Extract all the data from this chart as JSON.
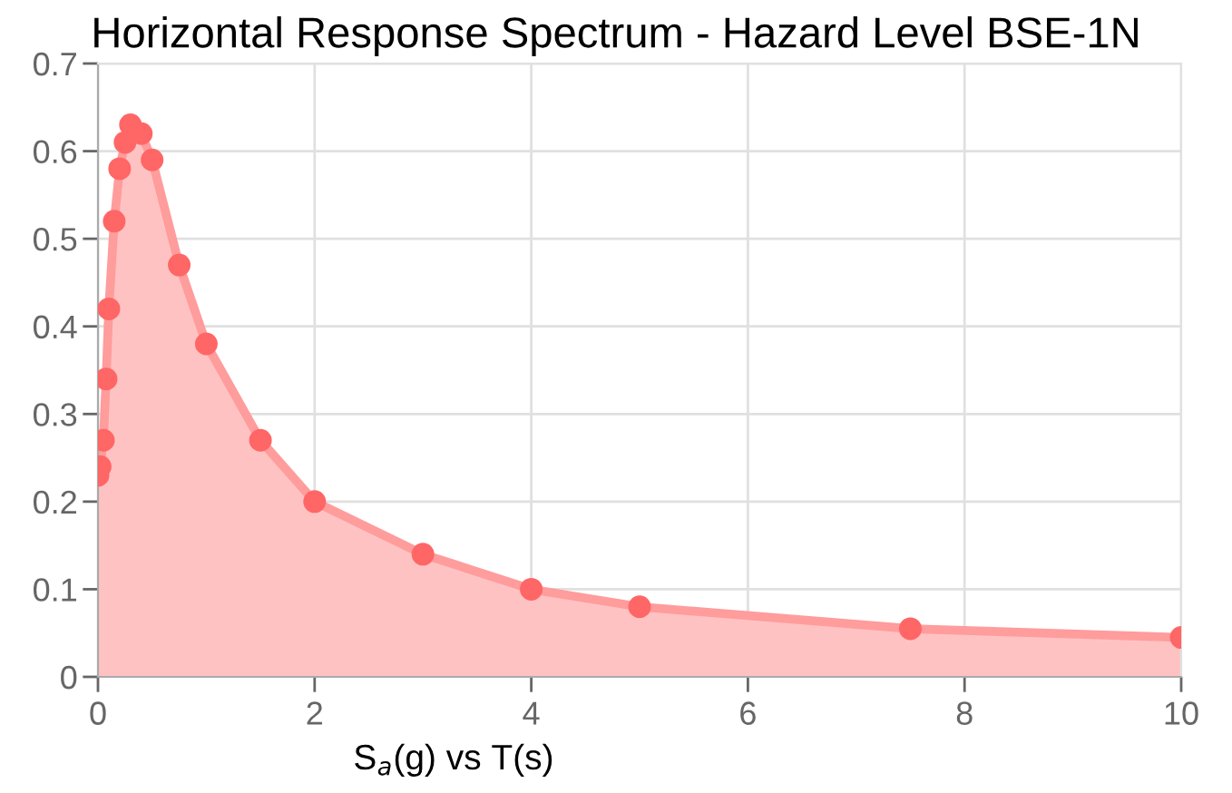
{
  "chart_data": {
    "type": "area",
    "title": "Horizontal Response Spectrum - Hazard Level BSE-1N",
    "xlabel": "S$_{a}$(g) vs T(s)",
    "x": [
      0,
      0.02,
      0.05,
      0.075,
      0.1,
      0.15,
      0.2,
      0.25,
      0.3,
      0.4,
      0.5,
      0.75,
      1.0,
      1.5,
      2,
      3,
      4,
      5,
      7.5,
      10
    ],
    "series": [
      {
        "color": "#ff6666",
        "values": [
          0.23,
          0.24,
          0.27,
          0.34,
          0.42,
          0.52,
          0.58,
          0.61,
          0.63,
          0.62,
          0.59,
          0.47,
          0.38,
          0.27,
          0.2,
          0.14,
          0.1,
          0.08,
          0.055,
          0.045
        ]
      }
    ],
    "xlim": [
      0,
      10
    ],
    "ylim": [
      0,
      0.7
    ],
    "xticks": [
      0,
      2,
      4,
      6,
      8,
      10
    ],
    "yticks": [
      0,
      0.1,
      0.2,
      0.3,
      0.4,
      0.5,
      0.6,
      0.7
    ],
    "grid": true,
    "marker": "circle",
    "line_style": "solid"
  }
}
